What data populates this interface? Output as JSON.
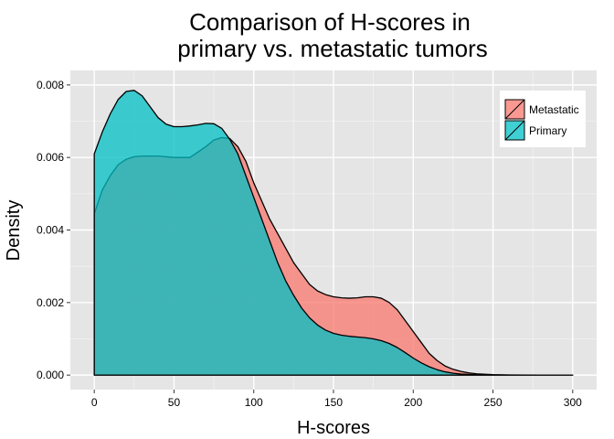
{
  "chart_data": {
    "type": "area",
    "title_line1": "Comparison of H-scores in",
    "title_line2": "primary vs. metastatic tumors",
    "xlabel": "H-scores",
    "ylabel": "Density",
    "xlim": [
      -15,
      315
    ],
    "ylim": [
      -0.0004,
      0.0084
    ],
    "x_ticks": [
      0,
      50,
      100,
      150,
      200,
      250,
      300
    ],
    "x_tick_labels": [
      "0",
      "50",
      "100",
      "150",
      "200",
      "250",
      "300"
    ],
    "y_ticks": [
      0,
      0.002,
      0.004,
      0.006,
      0.008
    ],
    "y_tick_labels": [
      "0.000",
      "0.002",
      "0.004",
      "0.006",
      "0.008"
    ],
    "grid": true,
    "background": "#E5E5E5",
    "legend_position": "top-right",
    "series": [
      {
        "name": "Metastatic",
        "color": "#F8766D",
        "points": [
          [
            0,
            0.00445
          ],
          [
            5,
            0.0051
          ],
          [
            10,
            0.0055
          ],
          [
            15,
            0.0058
          ],
          [
            20,
            0.00595
          ],
          [
            25,
            0.00602
          ],
          [
            30,
            0.00604
          ],
          [
            40,
            0.00604
          ],
          [
            50,
            0.006
          ],
          [
            60,
            0.006
          ],
          [
            70,
            0.0063
          ],
          [
            75,
            0.00648
          ],
          [
            80,
            0.00655
          ],
          [
            85,
            0.00652
          ],
          [
            90,
            0.0063
          ],
          [
            95,
            0.0059
          ],
          [
            100,
            0.0053
          ],
          [
            105,
            0.0048
          ],
          [
            110,
            0.0043
          ],
          [
            115,
            0.0039
          ],
          [
            120,
            0.0035
          ],
          [
            125,
            0.0031
          ],
          [
            130,
            0.0028
          ],
          [
            135,
            0.0025
          ],
          [
            140,
            0.00232
          ],
          [
            145,
            0.00222
          ],
          [
            150,
            0.00216
          ],
          [
            155,
            0.00213
          ],
          [
            160,
            0.00212
          ],
          [
            165,
            0.00213
          ],
          [
            170,
            0.00216
          ],
          [
            175,
            0.00216
          ],
          [
            180,
            0.00212
          ],
          [
            185,
            0.002
          ],
          [
            190,
            0.0018
          ],
          [
            195,
            0.0015
          ],
          [
            200,
            0.0012
          ],
          [
            205,
            0.0009
          ],
          [
            210,
            0.0006
          ],
          [
            215,
            0.0004
          ],
          [
            220,
            0.00025
          ],
          [
            225,
            0.00016
          ],
          [
            230,
            0.0001
          ],
          [
            235,
            6e-05
          ],
          [
            240,
            3.5e-05
          ],
          [
            250,
            1.2e-05
          ],
          [
            260,
            4e-06
          ],
          [
            280,
            5e-07
          ],
          [
            300,
            0
          ]
        ]
      },
      {
        "name": "Primary",
        "color": "#00BFC4",
        "points": [
          [
            0,
            0.0061
          ],
          [
            5,
            0.0067
          ],
          [
            10,
            0.0072
          ],
          [
            15,
            0.0076
          ],
          [
            20,
            0.00782
          ],
          [
            25,
            0.00785
          ],
          [
            30,
            0.0077
          ],
          [
            35,
            0.0074
          ],
          [
            40,
            0.0071
          ],
          [
            45,
            0.00692
          ],
          [
            50,
            0.00685
          ],
          [
            55,
            0.00685
          ],
          [
            60,
            0.00687
          ],
          [
            65,
            0.0069
          ],
          [
            70,
            0.00694
          ],
          [
            75,
            0.00693
          ],
          [
            80,
            0.0068
          ],
          [
            85,
            0.0065
          ],
          [
            90,
            0.0061
          ],
          [
            95,
            0.0055
          ],
          [
            100,
            0.0049
          ],
          [
            105,
            0.0043
          ],
          [
            110,
            0.0037
          ],
          [
            115,
            0.0031
          ],
          [
            120,
            0.0026
          ],
          [
            125,
            0.0022
          ],
          [
            130,
            0.00185
          ],
          [
            135,
            0.00158
          ],
          [
            140,
            0.00138
          ],
          [
            145,
            0.00124
          ],
          [
            150,
            0.00115
          ],
          [
            155,
            0.0011
          ],
          [
            160,
            0.00107
          ],
          [
            165,
            0.00105
          ],
          [
            170,
            0.00103
          ],
          [
            175,
            0.001
          ],
          [
            180,
            0.00095
          ],
          [
            185,
            0.00087
          ],
          [
            190,
            0.00076
          ],
          [
            195,
            0.00062
          ],
          [
            200,
            0.00047
          ],
          [
            205,
            0.00034
          ],
          [
            210,
            0.00023
          ],
          [
            215,
            0.00015
          ],
          [
            220,
            9e-05
          ],
          [
            225,
            5e-05
          ],
          [
            230,
            2.8e-05
          ],
          [
            240,
            8e-06
          ],
          [
            250,
            2e-06
          ],
          [
            270,
            3e-07
          ],
          [
            300,
            0
          ]
        ]
      }
    ]
  }
}
